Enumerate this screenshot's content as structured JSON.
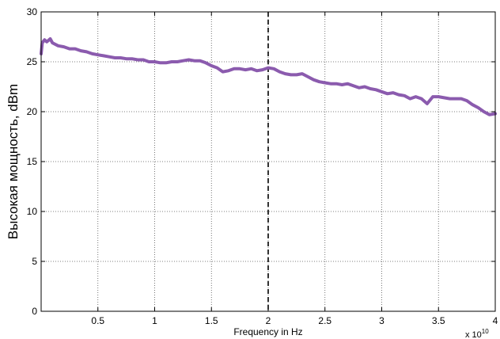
{
  "chart_data": {
    "type": "line",
    "title": "",
    "xlabel": "Frequency in Hz",
    "ylabel": "Высокая мощность, dBm",
    "x_exponent_label": "x 10",
    "x_exponent_value": "10",
    "xlim": [
      0,
      40000000000.0
    ],
    "ylim": [
      0,
      30
    ],
    "x_ticks": [
      5000000000.0,
      10000000000.0,
      15000000000.0,
      20000000000.0,
      25000000000.0,
      30000000000.0,
      35000000000.0,
      40000000000.0
    ],
    "x_tick_labels": [
      "0.5",
      "1",
      "1.5",
      "2",
      "2.5",
      "3",
      "3.5",
      "4"
    ],
    "y_ticks": [
      0,
      5,
      10,
      15,
      20,
      25,
      30
    ],
    "y_tick_labels": [
      "0",
      "5",
      "10",
      "15",
      "20",
      "25",
      "30"
    ],
    "grid": true,
    "vline_x": 20000000000.0,
    "series": [
      {
        "color": "#8B5BAE",
        "x": [
          0,
          100000000.0,
          300000000.0,
          500000000.0,
          800000000.0,
          1000000000.0,
          1500000000.0,
          2000000000.0,
          2500000000.0,
          3000000000.0,
          3500000000.0,
          4000000000.0,
          4500000000.0,
          5000000000.0,
          5500000000.0,
          6000000000.0,
          6500000000.0,
          7000000000.0,
          7500000000.0,
          8000000000.0,
          8500000000.0,
          9000000000.0,
          9500000000.0,
          10000000000.0,
          10500000000.0,
          11000000000.0,
          11500000000.0,
          12000000000.0,
          12500000000.0,
          13000000000.0,
          13500000000.0,
          14000000000.0,
          14500000000.0,
          15000000000.0,
          15500000000.0,
          16000000000.0,
          16500000000.0,
          17000000000.0,
          17500000000.0,
          18000000000.0,
          18500000000.0,
          19000000000.0,
          19500000000.0,
          20000000000.0,
          20500000000.0,
          21000000000.0,
          21500000000.0,
          22000000000.0,
          22500000000.0,
          23000000000.0,
          23500000000.0,
          24000000000.0,
          24500000000.0,
          25000000000.0,
          25500000000.0,
          26000000000.0,
          26500000000.0,
          27000000000.0,
          27500000000.0,
          28000000000.0,
          28500000000.0,
          29000000000.0,
          29500000000.0,
          30000000000.0,
          30500000000.0,
          31000000000.0,
          31500000000.0,
          32000000000.0,
          32500000000.0,
          33000000000.0,
          33500000000.0,
          34000000000.0,
          34500000000.0,
          35000000000.0,
          35500000000.0,
          36000000000.0,
          36500000000.0,
          37000000000.0,
          37500000000.0,
          38000000000.0,
          38500000000.0,
          39000000000.0,
          39500000000.0,
          40000000000.0
        ],
        "y": [
          25.8,
          26.9,
          27.2,
          27.0,
          27.3,
          26.9,
          26.6,
          26.5,
          26.3,
          26.3,
          26.1,
          26.0,
          25.8,
          25.7,
          25.6,
          25.5,
          25.4,
          25.4,
          25.3,
          25.3,
          25.2,
          25.2,
          25.0,
          25.0,
          24.9,
          24.9,
          25.0,
          25.0,
          25.1,
          25.2,
          25.1,
          25.1,
          24.9,
          24.6,
          24.4,
          24.0,
          24.1,
          24.3,
          24.3,
          24.2,
          24.3,
          24.1,
          24.2,
          24.4,
          24.3,
          24.0,
          23.8,
          23.7,
          23.7,
          23.8,
          23.5,
          23.2,
          23.0,
          22.9,
          22.8,
          22.8,
          22.7,
          22.8,
          22.6,
          22.4,
          22.5,
          22.3,
          22.2,
          22.0,
          21.8,
          21.9,
          21.7,
          21.6,
          21.3,
          21.5,
          21.3,
          20.8,
          21.5,
          21.5,
          21.4,
          21.3,
          21.3,
          21.3,
          21.1,
          20.7,
          20.4,
          20.0,
          19.7,
          19.8
        ]
      }
    ]
  }
}
